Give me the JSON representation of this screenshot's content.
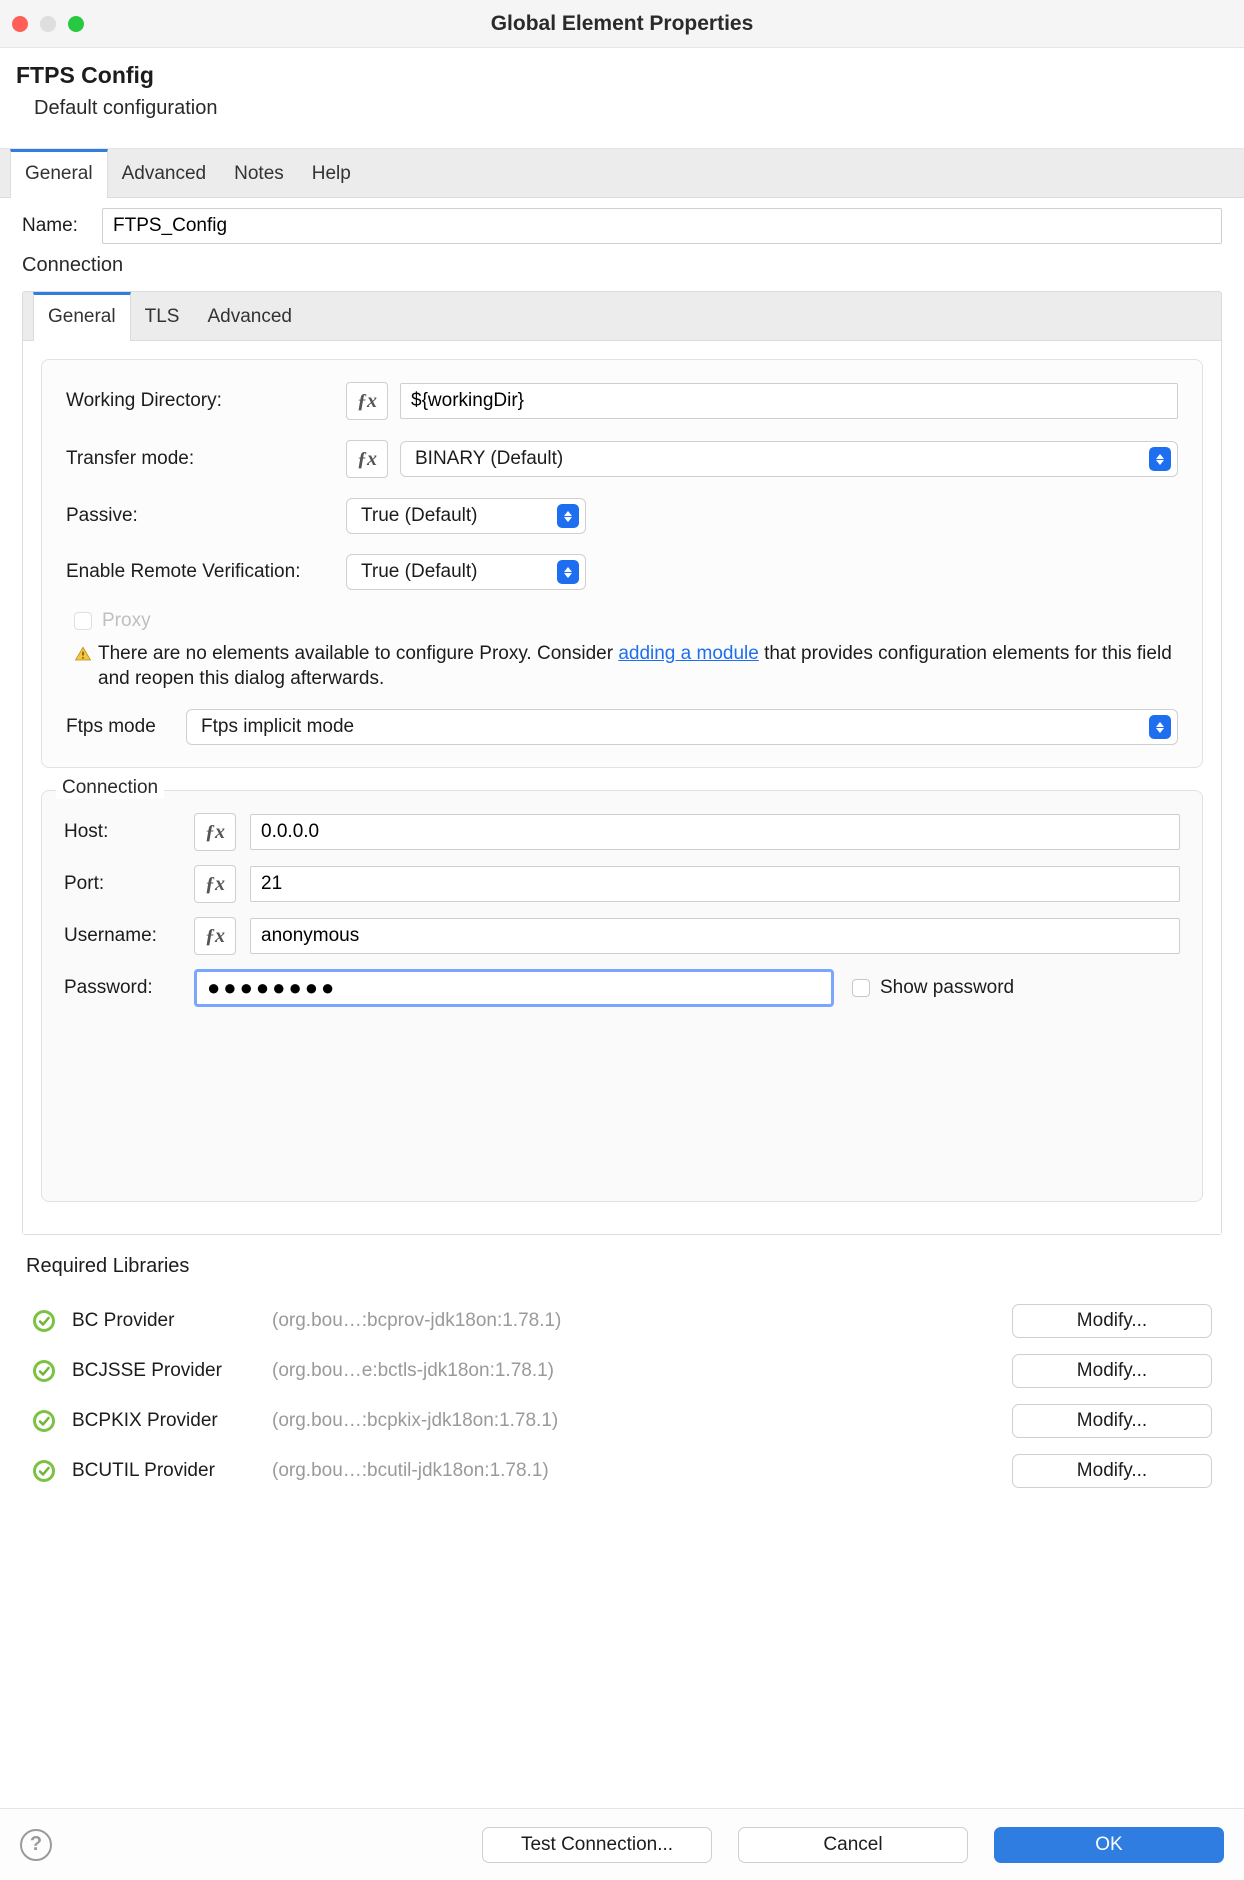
{
  "window": {
    "title": "Global Element Properties"
  },
  "traffic_colors": {
    "close": "#ff5f57",
    "min": "#dedede",
    "max": "#28c840"
  },
  "header": {
    "title": "FTPS Config",
    "subtitle": "Default configuration"
  },
  "outer_tabs": {
    "items": [
      "General",
      "Advanced",
      "Notes",
      "Help"
    ],
    "active": 0
  },
  "name_field": {
    "label": "Name:",
    "value": "FTPS_Config"
  },
  "connection_heading": "Connection",
  "inner_tabs": {
    "items": [
      "General",
      "TLS",
      "Advanced"
    ],
    "active": 0
  },
  "form": {
    "working_dir": {
      "label": "Working Directory:",
      "value": "${workingDir}"
    },
    "transfer_mode": {
      "label": "Transfer mode:",
      "value": "BINARY (Default)"
    },
    "passive": {
      "label": "Passive:",
      "value": "True (Default)"
    },
    "remote_verify": {
      "label": "Enable Remote Verification:",
      "value": "True (Default)"
    },
    "proxy": {
      "label": "Proxy"
    },
    "proxy_warning": {
      "pre": "There are no elements available to configure Proxy. Consider ",
      "link": "adding a module",
      "post": " that provides configuration elements for this field and reopen this dialog afterwards."
    },
    "ftps_mode": {
      "label": "Ftps mode",
      "value": "Ftps implicit mode"
    }
  },
  "conn_fieldset": {
    "legend": "Connection",
    "host": {
      "label": "Host:",
      "value": "0.0.0.0"
    },
    "port": {
      "label": "Port:",
      "value": "21"
    },
    "username": {
      "label": "Username:",
      "value": "anonymous"
    },
    "password": {
      "label": "Password:",
      "value": "●●●●●●●●"
    },
    "show_pwd_label": "Show password"
  },
  "required_libraries": {
    "heading": "Required Libraries",
    "modify_label": "Modify...",
    "items": [
      {
        "name": "BC Provider",
        "meta": "(org.bou…:bcprov-jdk18on:1.78.1)"
      },
      {
        "name": "BCJSSE Provider",
        "meta": "(org.bou…e:bctls-jdk18on:1.78.1)"
      },
      {
        "name": "BCPKIX Provider",
        "meta": "(org.bou…:bcpkix-jdk18on:1.78.1)"
      },
      {
        "name": "BCUTIL Provider",
        "meta": "(org.bou…:bcutil-jdk18on:1.78.1)"
      }
    ]
  },
  "footer": {
    "test_connection": "Test Connection...",
    "cancel": "Cancel",
    "ok": "OK"
  },
  "colors": {
    "accent": "#2f7de1",
    "tab_bg": "#ececec",
    "border": "#dcdcdc",
    "muted_text": "#9a9a9a",
    "link": "#1e6ff0"
  }
}
